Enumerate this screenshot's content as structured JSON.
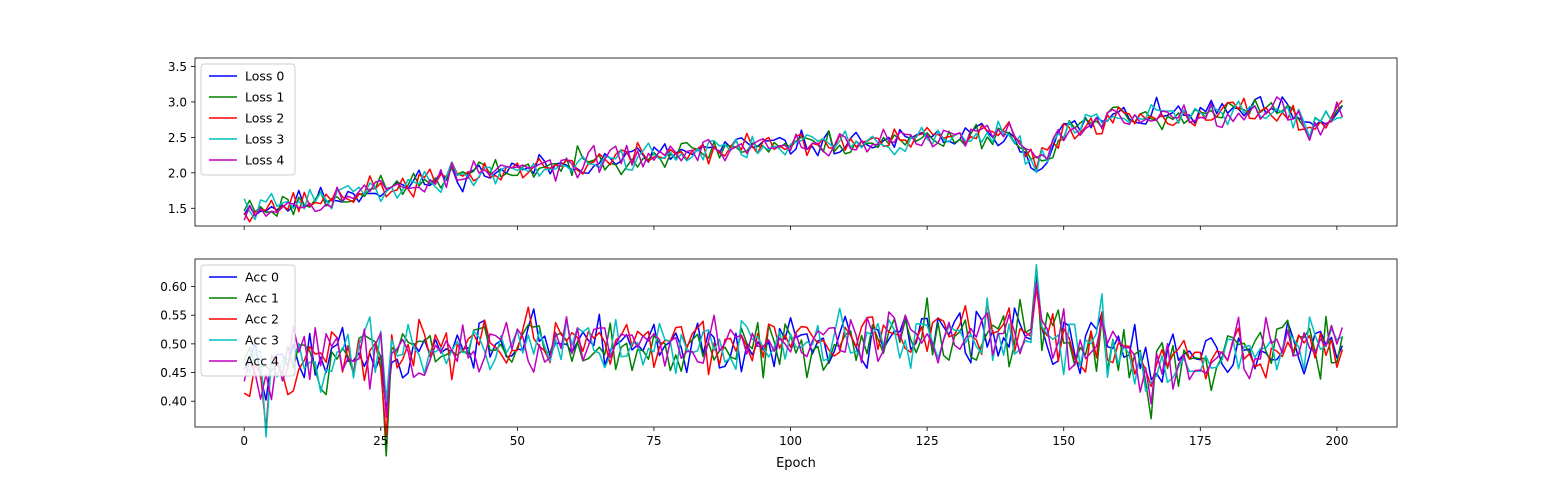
{
  "chart_data": [
    {
      "type": "line",
      "title": "",
      "xlabel": "",
      "ylabel": "",
      "xlim": [
        -9,
        211
      ],
      "ylim": [
        1.25,
        3.62
      ],
      "x_ticks": [
        0,
        25,
        50,
        75,
        100,
        125,
        150,
        175,
        200
      ],
      "x_tick_labels_visible": false,
      "y_ticks": [
        1.5,
        2.0,
        2.5,
        3.0,
        3.5
      ],
      "y_tick_labels": [
        "1.5",
        "2.0",
        "2.5",
        "3.0",
        "3.5"
      ],
      "grid": false,
      "legend_position": "upper-left",
      "n_points": 202,
      "series": [
        {
          "name": "Loss 0",
          "color": "#0000ff",
          "base": 0.0,
          "noise": 0.1,
          "seed": 11
        },
        {
          "name": "Loss 1",
          "color": "#008000",
          "base": 0.0,
          "noise": 0.1,
          "seed": 23
        },
        {
          "name": "Loss 2",
          "color": "#ff0000",
          "base": 0.0,
          "noise": 0.1,
          "seed": 37
        },
        {
          "name": "Loss 3",
          "color": "#00bfbf",
          "base": 0.0,
          "noise": 0.1,
          "seed": 41
        },
        {
          "name": "Loss 4",
          "color": "#bf00bf",
          "base": 0.0,
          "noise": 0.1,
          "seed": 53
        }
      ],
      "trend": {
        "x": [
          0,
          3,
          10,
          20,
          30,
          40,
          50,
          60,
          70,
          80,
          90,
          100,
          110,
          120,
          130,
          140,
          145,
          150,
          160,
          170,
          180,
          190,
          195,
          201
        ],
        "y": [
          1.52,
          1.5,
          1.57,
          1.72,
          1.83,
          1.98,
          2.05,
          2.12,
          2.22,
          2.28,
          2.36,
          2.4,
          2.42,
          2.44,
          2.5,
          2.58,
          2.1,
          2.6,
          2.78,
          2.82,
          2.86,
          2.9,
          2.6,
          2.9
        ]
      }
    },
    {
      "type": "line",
      "title": "",
      "xlabel": "Epoch",
      "ylabel": "",
      "xlim": [
        -9,
        211
      ],
      "ylim": [
        0.355,
        0.648
      ],
      "x_ticks": [
        0,
        25,
        50,
        75,
        100,
        125,
        150,
        175,
        200
      ],
      "x_tick_labels": [
        "0",
        "25",
        "50",
        "75",
        "100",
        "125",
        "150",
        "175",
        "200"
      ],
      "y_ticks": [
        0.4,
        0.45,
        0.5,
        0.55,
        0.6
      ],
      "y_tick_labels": [
        "0.40",
        "0.45",
        "0.50",
        "0.55",
        "0.60"
      ],
      "grid": false,
      "legend_position": "upper-left",
      "n_points": 202,
      "series": [
        {
          "name": "Acc 0",
          "color": "#0000ff",
          "noise": 0.028,
          "seed": 71
        },
        {
          "name": "Acc 1",
          "color": "#008000",
          "noise": 0.028,
          "seed": 83
        },
        {
          "name": "Acc 2",
          "color": "#ff0000",
          "noise": 0.028,
          "seed": 97
        },
        {
          "name": "Acc 3",
          "color": "#00bfbf",
          "noise": 0.028,
          "seed": 101
        },
        {
          "name": "Acc 4",
          "color": "#bf00bf",
          "noise": 0.028,
          "seed": 113
        }
      ],
      "trend": {
        "x": [
          0,
          5,
          20,
          26,
          50,
          100,
          145,
          150,
          165,
          201
        ],
        "y": [
          0.46,
          0.47,
          0.49,
          0.48,
          0.5,
          0.5,
          0.52,
          0.5,
          0.47,
          0.5
        ]
      },
      "spikes": [
        {
          "x": 26,
          "dy": -0.12
        },
        {
          "x": 145,
          "dy": 0.11
        },
        {
          "x": 157,
          "dy": 0.08
        },
        {
          "x": 166,
          "dy": -0.06
        },
        {
          "x": 4,
          "dy": -0.07
        }
      ]
    }
  ]
}
